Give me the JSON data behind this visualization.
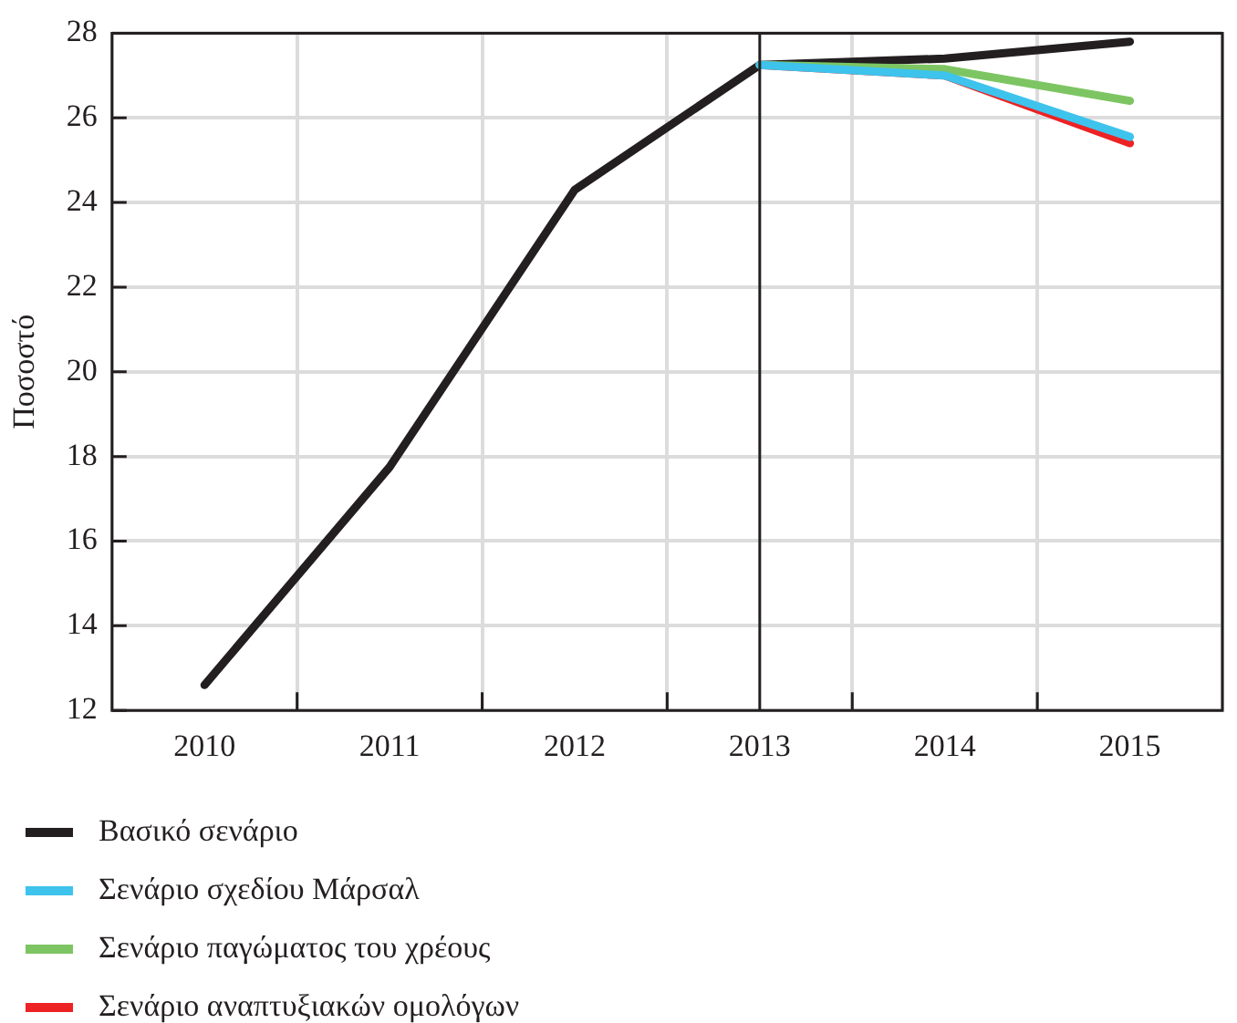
{
  "chart_data": {
    "type": "line",
    "ylabel": "Ποσοστό",
    "categories": [
      "2010",
      "2011",
      "2012",
      "2013",
      "2014",
      "2015"
    ],
    "series": [
      {
        "name": "Βασικό σενάριο",
        "color": "#231f20",
        "values": [
          12.6,
          17.75,
          24.3,
          27.25,
          27.4,
          27.8
        ]
      },
      {
        "name": "Σενάριο σχεδίου Μάρσαλ",
        "color": "#3ec3ec",
        "values": [
          null,
          null,
          null,
          27.25,
          27.0,
          25.55
        ]
      },
      {
        "name": "Σενάριο παγώματος του χρέους",
        "color": "#7dc562",
        "values": [
          null,
          null,
          null,
          27.25,
          27.15,
          26.4
        ]
      },
      {
        "name": "Σενάριο αναπτυξιακών ομολόγων",
        "color": "#ed2224",
        "values": [
          null,
          null,
          null,
          27.25,
          27.0,
          25.4
        ]
      }
    ],
    "ylim": [
      12,
      28
    ],
    "yticks": [
      12,
      14,
      16,
      18,
      20,
      22,
      24,
      26,
      28
    ],
    "grid": true,
    "legend": "bottom",
    "marker": "none",
    "line_style": "solid",
    "ref_lines": [
      {
        "axis": "x",
        "value": "2013",
        "color": "#231f20"
      }
    ]
  }
}
